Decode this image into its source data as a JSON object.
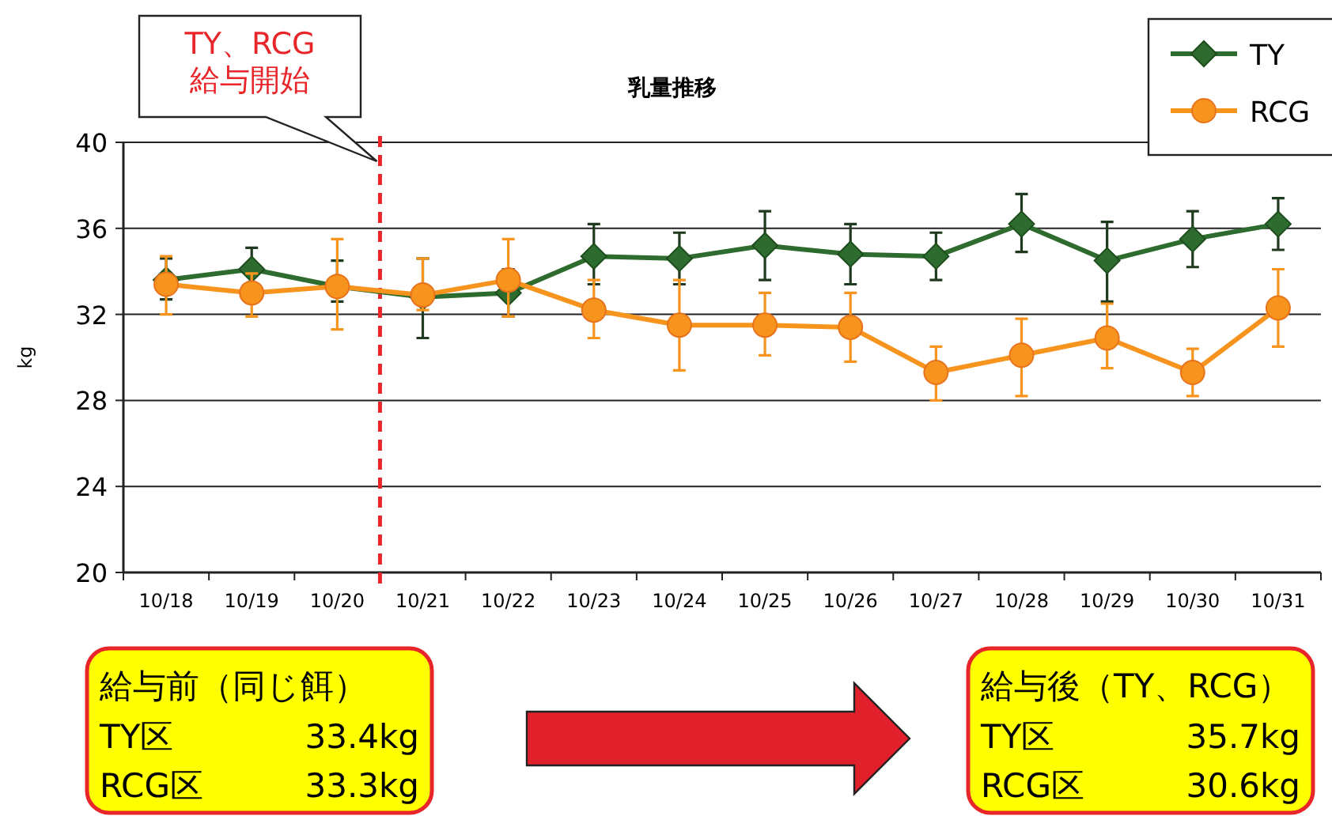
{
  "chart_data": {
    "type": "line",
    "title": "乳量推移",
    "ylabel": "kg",
    "categories": [
      "10/18",
      "10/19",
      "10/20",
      "10/21",
      "10/22",
      "10/23",
      "10/24",
      "10/25",
      "10/26",
      "10/27",
      "10/28",
      "10/29",
      "10/30",
      "10/31"
    ],
    "series": [
      {
        "name": "TY",
        "color": "#2e6b2e",
        "marker": "diamond",
        "values": [
          33.6,
          34.1,
          33.3,
          32.8,
          33.0,
          34.7,
          34.6,
          35.2,
          34.8,
          34.7,
          36.2,
          34.5,
          35.5,
          36.2
        ],
        "errors": [
          [
            32.7,
            34.6
          ],
          [
            33.3,
            35.1
          ],
          [
            32.6,
            34.5
          ],
          [
            30.9,
            34.6
          ],
          [
            31.9,
            34.1
          ],
          [
            33.4,
            36.2
          ],
          [
            33.4,
            35.8
          ],
          [
            33.6,
            36.8
          ],
          [
            33.4,
            36.2
          ],
          [
            33.6,
            35.8
          ],
          [
            34.9,
            37.6
          ],
          [
            32.6,
            36.3
          ],
          [
            34.2,
            36.8
          ],
          [
            35.0,
            37.4
          ]
        ]
      },
      {
        "name": "RCG",
        "color": "#f7941d",
        "marker": "circle",
        "values": [
          33.4,
          33.0,
          33.3,
          32.9,
          33.6,
          32.2,
          31.5,
          31.5,
          31.4,
          29.3,
          30.1,
          30.9,
          29.3,
          32.3
        ],
        "errors": [
          [
            32.0,
            34.7
          ],
          [
            31.9,
            33.9
          ],
          [
            31.3,
            35.5
          ],
          [
            32.2,
            34.6
          ],
          [
            31.9,
            35.5
          ],
          [
            30.9,
            33.6
          ],
          [
            29.4,
            33.6
          ],
          [
            30.1,
            33.0
          ],
          [
            29.8,
            33.0
          ],
          [
            28.0,
            30.5
          ],
          [
            28.2,
            31.8
          ],
          [
            29.5,
            32.5
          ],
          [
            28.2,
            30.4
          ],
          [
            30.5,
            34.1
          ]
        ]
      }
    ],
    "ylim": [
      20,
      40
    ],
    "yticks": [
      20,
      24,
      28,
      32,
      36,
      40
    ],
    "grid": "y",
    "legend": "top right",
    "ref_lines": [
      {
        "axis": "x",
        "value": "10/21",
        "label": "TY、RCG\n給与開始",
        "color": "#e8262a",
        "line_style": "dashed"
      }
    ],
    "annotations": [
      "給与前（同じ餌）",
      "TY区",
      "33.4kg",
      "RCG区",
      "33.3kg",
      "給与後（TY、RCG）",
      "TY区",
      "35.7kg",
      "RCG区",
      "30.6kg"
    ]
  }
}
